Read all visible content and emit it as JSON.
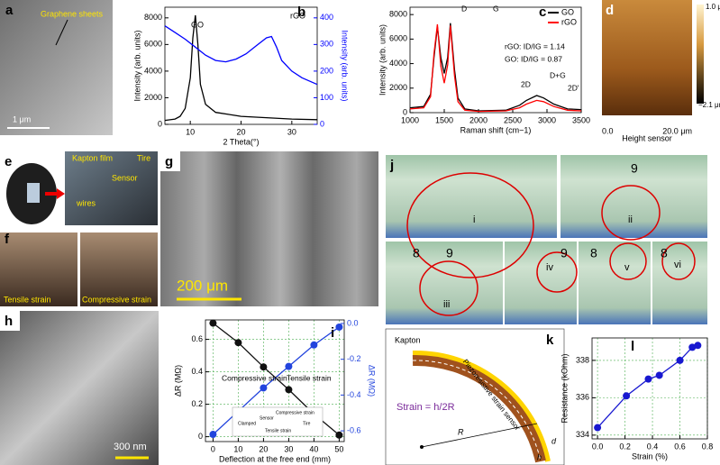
{
  "panels": {
    "a": {
      "letter": "a",
      "caption": "Graphene sheets",
      "scale": "1 μm"
    },
    "d": {
      "letter": "d",
      "bar_max": "1.0 μm",
      "bar_min": "−2.1 μm",
      "x_start": "0.0",
      "x_end": "20.0 μm",
      "axis": "Height sensor"
    },
    "e": {
      "letter": "e",
      "labels": [
        "Kapton film",
        "Tire",
        "Sensor",
        "wires"
      ]
    },
    "f": {
      "letter": "f",
      "labels": [
        "Tensile strain",
        "Compressive strain"
      ]
    },
    "g": {
      "letter": "g",
      "scale": "200 μm"
    },
    "h": {
      "letter": "h",
      "scale": "300 nm"
    },
    "j": {
      "letter": "j",
      "frames": [
        "i",
        "ii",
        "iii",
        "iv",
        "v",
        "vi"
      ],
      "ruler": [
        "9",
        "8",
        "9",
        "9",
        "8",
        "8"
      ]
    },
    "k": {
      "letter": "k",
      "material": "Kapton",
      "sensor": "Piezoresistive strain sensor",
      "equation": "Strain = h/2R",
      "radius": "R",
      "thickness_d": "d",
      "thickness_h": "h"
    }
  },
  "chart_data": [
    {
      "type": "line",
      "panel": "b",
      "xlabel": "2 Theta(°)",
      "ylabel": "Intensity (arb. units)",
      "y2label": "Intensity (arb. units)",
      "xlim": [
        5,
        35
      ],
      "xticks": [
        10,
        20,
        30
      ],
      "ylim": [
        0,
        8800
      ],
      "yticks": [
        0,
        2000,
        4000,
        6000,
        8000
      ],
      "y2lim": [
        0,
        440
      ],
      "y2ticks": [
        0,
        100,
        200,
        300,
        400
      ],
      "grid": false,
      "legend": false,
      "markers": false,
      "series": [
        {
          "name": "GO",
          "color": "#000000",
          "x": [
            5,
            7,
            8,
            9,
            10,
            10.5,
            11,
            11.5,
            12,
            13,
            15,
            20,
            25,
            30,
            35
          ],
          "values": [
            300,
            400,
            600,
            1200,
            3500,
            6500,
            8200,
            6000,
            3000,
            1500,
            900,
            600,
            500,
            400,
            350
          ]
        },
        {
          "name": "rGO",
          "color": "#0000ff",
          "axis": "y2",
          "x": [
            5,
            7,
            9,
            11,
            13,
            15,
            17,
            19,
            21,
            23,
            25,
            26,
            27,
            28,
            30,
            32,
            35
          ],
          "values": [
            370,
            345,
            320,
            290,
            260,
            240,
            235,
            245,
            265,
            295,
            325,
            330,
            290,
            240,
            200,
            175,
            150
          ]
        }
      ]
    },
    {
      "type": "line",
      "panel": "c",
      "xlabel": "Raman shift (cm−1)",
      "ylabel": "Intensity (arb. units)",
      "xlim": [
        1000,
        3500
      ],
      "xticks": [
        1000,
        1500,
        2000,
        2500,
        3000,
        3500
      ],
      "ylim": [
        0,
        8600
      ],
      "yticks": [
        0,
        2000,
        4000,
        6000,
        8000
      ],
      "grid": false,
      "legend": "upper right",
      "markers": false,
      "annotations": [
        "rGO: ID/IG = 1.14",
        "GO: ID/IG = 0.87",
        "D",
        "G",
        "2D",
        "D+G",
        "2D'"
      ],
      "series": [
        {
          "name": "GO",
          "color": "#000000",
          "x": [
            1000,
            1200,
            1300,
            1350,
            1400,
            1450,
            1500,
            1550,
            1590,
            1650,
            1700,
            1800,
            2000,
            2400,
            2600,
            2700,
            2850,
            2950,
            3100,
            3300,
            3500
          ],
          "values": [
            400,
            500,
            1500,
            4500,
            7000,
            4500,
            3200,
            4500,
            7300,
            3500,
            1200,
            300,
            150,
            200,
            600,
            1000,
            1400,
            1200,
            700,
            300,
            250
          ]
        },
        {
          "name": "rGO",
          "color": "#ff0000",
          "x": [
            1000,
            1200,
            1300,
            1350,
            1400,
            1450,
            1500,
            1550,
            1590,
            1650,
            1700,
            1800,
            2000,
            2400,
            2600,
            2700,
            2850,
            2950,
            3100,
            3300,
            3500
          ],
          "values": [
            300,
            400,
            1300,
            4800,
            7200,
            3800,
            2400,
            3900,
            7100,
            3000,
            900,
            200,
            100,
            150,
            400,
            700,
            1000,
            900,
            500,
            200,
            150
          ]
        }
      ]
    },
    {
      "type": "line",
      "panel": "i",
      "xlabel": "Deflection at the free end (mm)",
      "ylabel": "ΔR (MΩ)",
      "y2label": "ΔR (MΩ)",
      "x": [
        0,
        10,
        20,
        30,
        40,
        50
      ],
      "xlim": [
        -3,
        52
      ],
      "xticks": [
        0,
        10,
        20,
        30,
        40,
        50
      ],
      "ylim": [
        -0.03,
        0.72
      ],
      "yticks": [
        0,
        0.2,
        0.4,
        0.6
      ],
      "y2lim": [
        -0.66,
        0.02
      ],
      "y2ticks": [
        -0.6,
        -0.4,
        -0.2,
        {
          "value": 0,
          "label": "0.0"
        }
      ],
      "grid": true,
      "legend": false,
      "markers": true,
      "annotations": [
        "Compressive strain",
        "Tensile strain"
      ],
      "inset": [
        "Compressive strain",
        "Sensor",
        "Clamped",
        "Tire",
        "Tensile strain"
      ],
      "series": [
        {
          "color": "#111111",
          "values": [
            0.7,
            0.58,
            0.43,
            0.29,
            0.14,
            0.01
          ]
        },
        {
          "color": "#2244dd",
          "axis": "y2",
          "values": [
            -0.62,
            -0.49,
            -0.36,
            -0.24,
            -0.12,
            -0.02
          ]
        }
      ]
    },
    {
      "type": "line",
      "panel": "l",
      "xlabel": "Strain (%)",
      "ylabel": "Resistance (kOhm)",
      "x": [
        0,
        0.21,
        0.37,
        0.45,
        0.6,
        0.69,
        0.73
      ],
      "xlim": [
        -0.04,
        0.8
      ],
      "xticks": [
        {
          "value": 0,
          "label": "0.0"
        },
        0.2,
        0.4,
        0.6,
        0.8
      ],
      "ylim": [
        333.8,
        339.2
      ],
      "yticks": [
        334,
        336,
        338
      ],
      "grid": true,
      "legend": false,
      "markers": true,
      "series": [
        {
          "color": "#1818d0",
          "values": [
            334.4,
            336.1,
            337.0,
            337.2,
            338.0,
            338.7,
            338.8
          ]
        }
      ]
    }
  ]
}
